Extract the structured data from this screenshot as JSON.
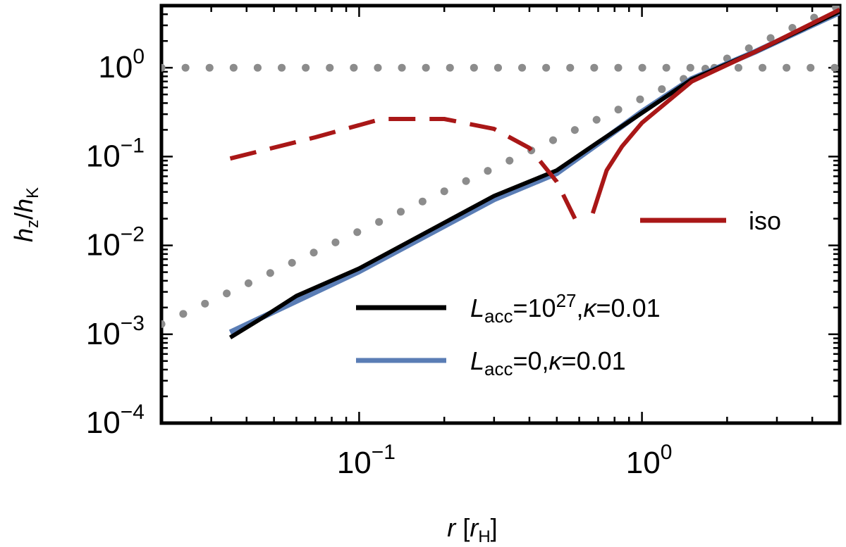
{
  "chart_data": {
    "type": "line",
    "xscale": "log",
    "yscale": "log",
    "xlim": [
      0.02,
      5.0
    ],
    "ylim": [
      0.0001,
      5.0
    ],
    "xlabel": {
      "main": "r",
      "bracket_open": "[",
      "unit": "r",
      "unit_sub": "H",
      "bracket_close": "]"
    },
    "ylabel": {
      "num": "h",
      "num_sub": "z",
      "slash": "/",
      "den": "h",
      "den_sub": "K"
    },
    "x_ticks": [
      {
        "value": 0.1,
        "mantissa": "10",
        "exponent": "−1"
      },
      {
        "value": 1.0,
        "mantissa": "10",
        "exponent": "0"
      }
    ],
    "y_ticks": [
      {
        "value": 0.0001,
        "mantissa": "10",
        "exponent": "−4"
      },
      {
        "value": 0.001,
        "mantissa": "10",
        "exponent": "−3"
      },
      {
        "value": 0.01,
        "mantissa": "10",
        "exponent": "−2"
      },
      {
        "value": 0.1,
        "mantissa": "10",
        "exponent": "−1"
      },
      {
        "value": 1.0,
        "mantissa": "10",
        "exponent": "0"
      }
    ],
    "series": [
      {
        "name": "ref-horizontal",
        "style": "dotted",
        "color": "#8c8c8c",
        "x": [
          0.02,
          5.0
        ],
        "y": [
          1.0,
          1.0
        ]
      },
      {
        "name": "ref-diagonal",
        "style": "dotted",
        "color": "#8c8c8c",
        "x": [
          0.02,
          5.0
        ],
        "y": [
          0.0013,
          5.0
        ]
      },
      {
        "name": "Lacc0",
        "style": "solid",
        "color": "#5a7db5",
        "x": [
          0.035,
          0.1,
          0.3,
          0.5,
          0.7,
          1.0,
          1.5,
          2.5,
          5.0
        ],
        "y": [
          0.00105,
          0.0051,
          0.033,
          0.065,
          0.14,
          0.32,
          0.75,
          1.5,
          4.2
        ]
      },
      {
        "name": "Lacc27",
        "style": "solid",
        "color": "#000000",
        "x": [
          0.035,
          0.045,
          0.06,
          0.1,
          0.3,
          0.5,
          0.7,
          1.0,
          1.5,
          2.5,
          5.0
        ],
        "y": [
          0.00092,
          0.0015,
          0.0027,
          0.0055,
          0.036,
          0.07,
          0.145,
          0.31,
          0.74,
          1.5,
          4.3
        ]
      },
      {
        "name": "iso-dashed",
        "style": "dashed",
        "color": "#a91717",
        "x": [
          0.035,
          0.07,
          0.12,
          0.2,
          0.3,
          0.4,
          0.5,
          0.6
        ],
        "y": [
          0.095,
          0.165,
          0.265,
          0.265,
          0.205,
          0.125,
          0.052,
          0.016
        ]
      },
      {
        "name": "iso",
        "style": "solid",
        "color": "#a91717",
        "x": [
          0.67,
          0.75,
          0.85,
          1.0,
          1.5,
          2.5,
          5.0
        ],
        "y": [
          0.023,
          0.07,
          0.13,
          0.24,
          0.7,
          1.5,
          4.5
        ]
      }
    ],
    "legend": [
      {
        "series": "iso",
        "color": "#a91717",
        "label": {
          "text": "iso"
        }
      },
      {
        "series": "Lacc27",
        "color": "#000000",
        "label": {
          "sym": "L",
          "sub": "acc",
          "eq": "=10",
          "sup": "27",
          "comma": ",",
          "kappa": "κ",
          "rest": "=0.01"
        }
      },
      {
        "series": "Lacc0",
        "color": "#5a7db5",
        "label": {
          "sym": "L",
          "sub": "acc",
          "eq": "=0,",
          "kappa": "κ",
          "rest": "=0.01"
        }
      }
    ]
  }
}
